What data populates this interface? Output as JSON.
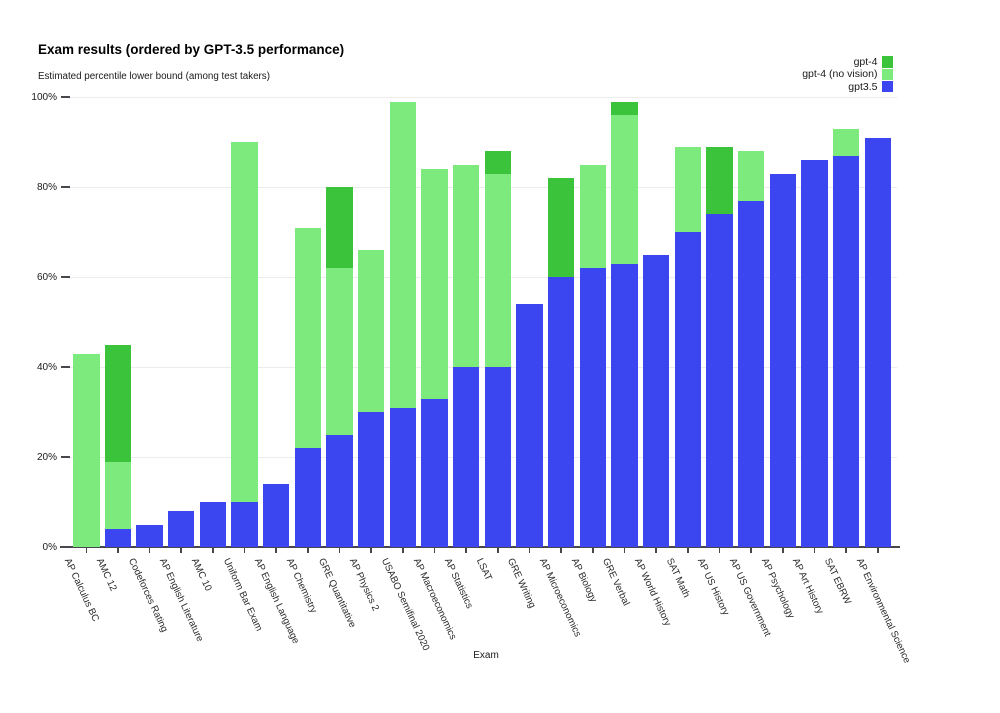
{
  "chart": {
    "title": "Exam results (ordered by GPT-3.5 performance)",
    "subtitle": "Estimated percentile lower bound (among test takers)",
    "xlabel": "Exam",
    "ytick_labels": [
      "0%",
      "20%",
      "40%",
      "60%",
      "80%",
      "100%"
    ],
    "legend": [
      {
        "label": "gpt-4",
        "color": "#3bc43b"
      },
      {
        "label": "gpt-4 (no vision)",
        "color": "#7dea7d"
      },
      {
        "label": "gpt3.5",
        "color": "#3b46f0"
      }
    ],
    "colors": {
      "gpt4": "#3bc43b",
      "gpt4_no_vision": "#7dea7d",
      "gpt35": "#3b46f0",
      "gridline": "#ececec",
      "axis": "#47474d"
    }
  },
  "chart_data": {
    "type": "bar",
    "overlay": true,
    "note": "Bars are overlaid (not stacked): gpt3.5 drawn in front, gpt-4 (no vision) behind it, gpt-4 in back. Values are percentile lower bounds read from the y-axis.",
    "title": "Exam results (ordered by GPT-3.5 performance)",
    "xlabel": "Exam",
    "ylabel": "Estimated percentile lower bound (among test takers)",
    "ylim": [
      0,
      100
    ],
    "grid": true,
    "legend_position": "top-right",
    "categories": [
      "AP Calculus BC",
      "AMC 12",
      "Codeforces Rating",
      "AP English Literature",
      "AMC 10",
      "Uniform Bar Exam",
      "AP English Language",
      "AP Chemistry",
      "GRE Quantitative",
      "AP Physics 2",
      "USABO Semifinal 2020",
      "AP Macroeconomics",
      "AP Statistics",
      "LSAT",
      "GRE Writing",
      "AP Microeconomics",
      "AP Biology",
      "GRE Verbal",
      "AP World History",
      "SAT Math",
      "AP US History",
      "AP US Government",
      "AP Psychology",
      "AP Art History",
      "SAT EBRW",
      "AP Environmental Science"
    ],
    "series": [
      {
        "name": "gpt-4",
        "color": "#3bc43b",
        "values": [
          43,
          45,
          5,
          8,
          10,
          90,
          14,
          71,
          80,
          66,
          99,
          84,
          85,
          88,
          54,
          82,
          85,
          99,
          65,
          89,
          89,
          88,
          83,
          86,
          93,
          91
        ]
      },
      {
        "name": "gpt-4 (no vision)",
        "color": "#7dea7d",
        "values": [
          43,
          19,
          5,
          8,
          10,
          90,
          14,
          71,
          62,
          66,
          99,
          84,
          85,
          83,
          54,
          60,
          85,
          96,
          65,
          89,
          74,
          88,
          83,
          86,
          93,
          91
        ]
      },
      {
        "name": "gpt3.5",
        "color": "#3b46f0",
        "values": [
          0,
          4,
          5,
          8,
          10,
          10,
          14,
          22,
          25,
          30,
          31,
          33,
          40,
          40,
          54,
          60,
          62,
          63,
          65,
          70,
          74,
          77,
          83,
          86,
          87,
          91
        ]
      }
    ]
  }
}
